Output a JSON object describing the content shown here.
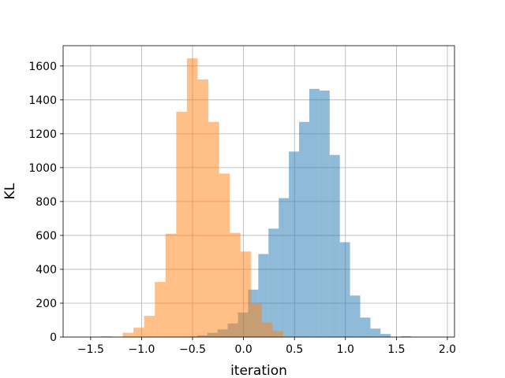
{
  "chart_data": {
    "type": "bar",
    "title": "",
    "xlabel": "iteration",
    "ylabel": "KL",
    "xlim": [
      -1.77,
      2.07
    ],
    "ylim": [
      0,
      1720
    ],
    "grid": true,
    "x_ticks": [
      -1.5,
      -1.0,
      -0.5,
      0.0,
      0.5,
      1.0,
      1.5,
      2.0
    ],
    "x_tick_labels": [
      "−1.5",
      "−1.0",
      "−0.5",
      "0.0",
      "0.5",
      "1.0",
      "1.5",
      "2.0"
    ],
    "y_ticks": [
      0,
      200,
      400,
      600,
      800,
      1000,
      1200,
      1400,
      1600
    ],
    "y_tick_labels": [
      "0",
      "200",
      "400",
      "600",
      "800",
      "1000",
      "1200",
      "1400",
      "1600"
    ],
    "series": [
      {
        "color": "#1f77b4",
        "opacity": 0.5,
        "bin_edges": [
          -0.555,
          -0.455,
          -0.355,
          -0.255,
          -0.155,
          -0.055,
          0.045,
          0.145,
          0.245,
          0.345,
          0.445,
          0.545,
          0.645,
          0.745,
          0.845,
          0.945,
          1.045,
          1.145,
          1.245,
          1.345,
          1.445,
          1.545,
          1.645
        ],
        "counts": [
          3,
          10,
          25,
          45,
          80,
          145,
          280,
          490,
          640,
          820,
          1095,
          1270,
          1465,
          1455,
          1075,
          560,
          245,
          115,
          50,
          18,
          0,
          5
        ]
      },
      {
        "color": "#ff7f0e",
        "opacity": 0.5,
        "bin_edges": [
          -1.395,
          -1.29,
          -1.185,
          -1.08,
          -0.975,
          -0.87,
          -0.765,
          -0.66,
          -0.555,
          -0.45,
          -0.345,
          -0.24,
          -0.135,
          -0.03,
          0.075,
          0.18,
          0.285,
          0.39
        ],
        "counts": [
          5,
          0,
          25,
          55,
          125,
          325,
          610,
          1330,
          1645,
          1520,
          1270,
          965,
          615,
          505,
          200,
          85,
          35
        ]
      }
    ]
  }
}
